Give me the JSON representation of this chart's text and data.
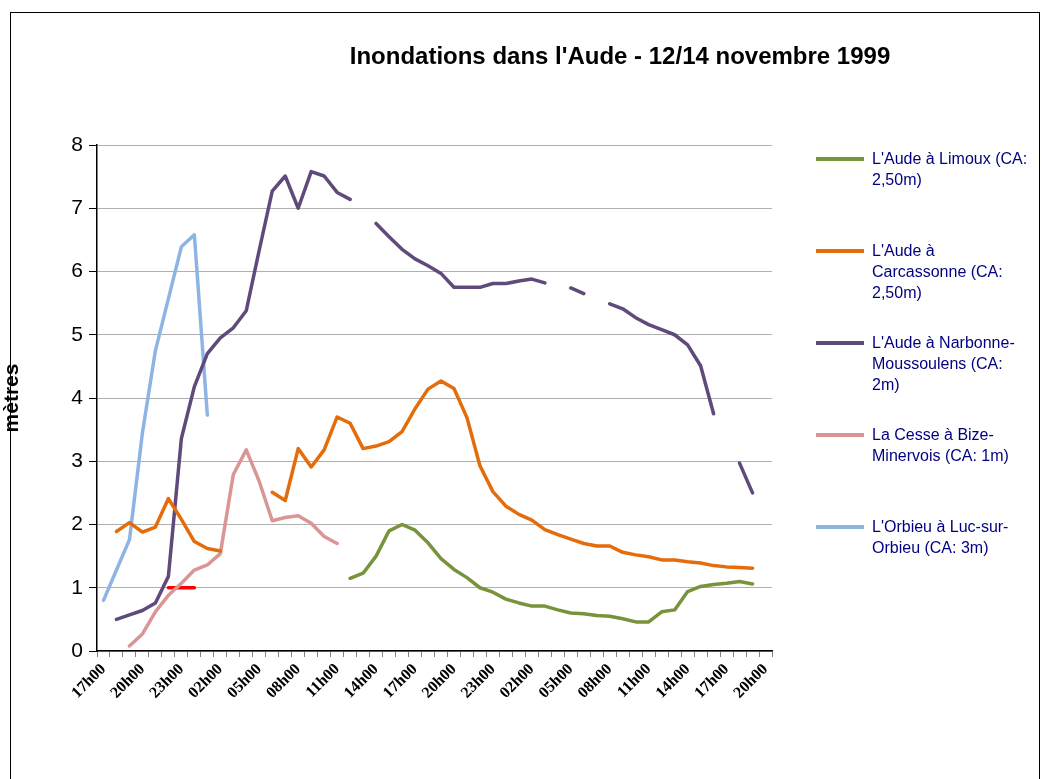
{
  "chart_data": {
    "type": "line",
    "title": "Inondations dans l'Aude - 12/14 novembre 1999",
    "ylabel": "mètres",
    "categories": [
      "17h00",
      null,
      null,
      "20h00",
      null,
      null,
      "23h00",
      null,
      null,
      "02h00",
      null,
      null,
      "05h00",
      null,
      null,
      "08h00",
      null,
      null,
      "11h00",
      null,
      null,
      "14h00",
      null,
      null,
      "17h00",
      null,
      null,
      "20h00",
      null,
      null,
      "23h00",
      null,
      null,
      "02h00",
      null,
      null,
      "05h00",
      null,
      null,
      "08h00",
      null,
      null,
      "11h00",
      null,
      null,
      "14h00",
      null,
      null,
      "17h00",
      null,
      null,
      "20h00"
    ],
    "series": [
      {
        "name": "L'Aude à Limoux (CA: 2,50m)",
        "color": "#77933c",
        "values": [
          null,
          null,
          null,
          null,
          null,
          null,
          null,
          null,
          null,
          null,
          null,
          null,
          null,
          null,
          null,
          null,
          null,
          null,
          null,
          1.15,
          1.23,
          1.5,
          1.9,
          2.0,
          1.91,
          1.71,
          1.46,
          1.29,
          1.16,
          1.0,
          0.93,
          0.82,
          0.76,
          0.71,
          0.71,
          0.65,
          0.6,
          0.59,
          0.56,
          0.55,
          0.51,
          0.46,
          0.46,
          0.62,
          0.65,
          0.94,
          1.02,
          1.05,
          1.07,
          1.1,
          1.06,
          null
        ]
      },
      {
        "name": "L'Aude à Carcassonne (CA: 2,50m)",
        "color": "#e46c0a",
        "values": [
          null,
          1.89,
          2.03,
          1.88,
          1.96,
          2.41,
          2.08,
          1.73,
          1.62,
          1.58,
          null,
          null,
          null,
          2.51,
          2.38,
          3.2,
          2.91,
          3.18,
          3.7,
          3.6,
          3.2,
          3.24,
          3.31,
          3.47,
          3.83,
          4.14,
          4.27,
          4.15,
          3.69,
          2.93,
          2.52,
          2.29,
          2.16,
          2.07,
          1.92,
          1.84,
          1.77,
          1.7,
          1.66,
          1.66,
          1.56,
          1.52,
          1.49,
          1.44,
          1.44,
          1.41,
          1.39,
          1.35,
          1.33,
          1.32,
          1.31,
          null
        ]
      },
      {
        "name": "L'Aude à Narbonne-Moussoulens (CA: 2m)",
        "color": "#604a7b",
        "values": [
          null,
          0.5,
          0.57,
          0.64,
          0.76,
          1.18,
          3.36,
          4.18,
          4.7,
          4.95,
          5.11,
          5.38,
          6.34,
          7.27,
          7.51,
          7.0,
          7.58,
          7.51,
          7.25,
          7.14,
          null,
          6.76,
          6.55,
          6.35,
          6.2,
          6.09,
          5.97,
          5.75,
          5.75,
          5.75,
          5.81,
          5.81,
          5.85,
          5.88,
          5.82,
          null,
          5.74,
          5.65,
          null,
          5.49,
          5.41,
          5.27,
          5.16,
          5.08,
          5.0,
          4.84,
          4.51,
          3.75,
          null,
          2.97,
          2.5,
          null
        ]
      },
      {
        "name": "La Cesse à Bize-Minervois (CA: 1m)",
        "color": "#d99694",
        "values": [
          null,
          null,
          0.08,
          0.27,
          0.62,
          0.88,
          1.07,
          1.28,
          1.36,
          1.54,
          2.79,
          3.18,
          2.68,
          2.06,
          2.11,
          2.14,
          2.02,
          1.81,
          1.7,
          null,
          null,
          null,
          null,
          null,
          null,
          null,
          null,
          null,
          null,
          null,
          null,
          null,
          null,
          null,
          null,
          null,
          null,
          null,
          null,
          null,
          null,
          null,
          null,
          null,
          null,
          null,
          null,
          null,
          null,
          null,
          null,
          null
        ]
      },
      {
        "name": "L'Orbieu à Luc-sur-Orbieu (CA: 3m)",
        "color": "#8eb4e3",
        "values": [
          0.8,
          1.28,
          1.76,
          3.45,
          4.75,
          5.57,
          6.39,
          6.58,
          3.73,
          null,
          null,
          null,
          null,
          null,
          null,
          null,
          null,
          null,
          null,
          null,
          null,
          null,
          null,
          null,
          null,
          null,
          null,
          null,
          null,
          null,
          null,
          null,
          null,
          null,
          null,
          null,
          null,
          null,
          null,
          null,
          null,
          null,
          null,
          null,
          null,
          null,
          null,
          null,
          null,
          null,
          null,
          null
        ]
      },
      {
        "color": "#ff0000",
        "values": [
          null,
          null,
          null,
          null,
          null,
          1,
          1,
          1,
          null,
          null,
          null,
          null,
          null,
          null,
          null,
          null,
          null,
          null,
          null,
          null,
          null,
          null,
          null,
          null,
          null,
          null,
          null,
          null,
          null,
          null,
          null,
          null,
          null,
          null,
          null,
          null,
          null,
          null,
          null,
          null,
          null,
          null,
          null,
          null,
          null,
          null,
          null,
          null,
          null,
          null,
          null,
          null
        ]
      }
    ],
    "ylim": [
      0,
      8
    ],
    "yticks": [
      0,
      1,
      2,
      3,
      4,
      5,
      6,
      7,
      8
    ],
    "grid": "y",
    "legend": "right",
    "marker": "none",
    "line_style": "solid"
  }
}
